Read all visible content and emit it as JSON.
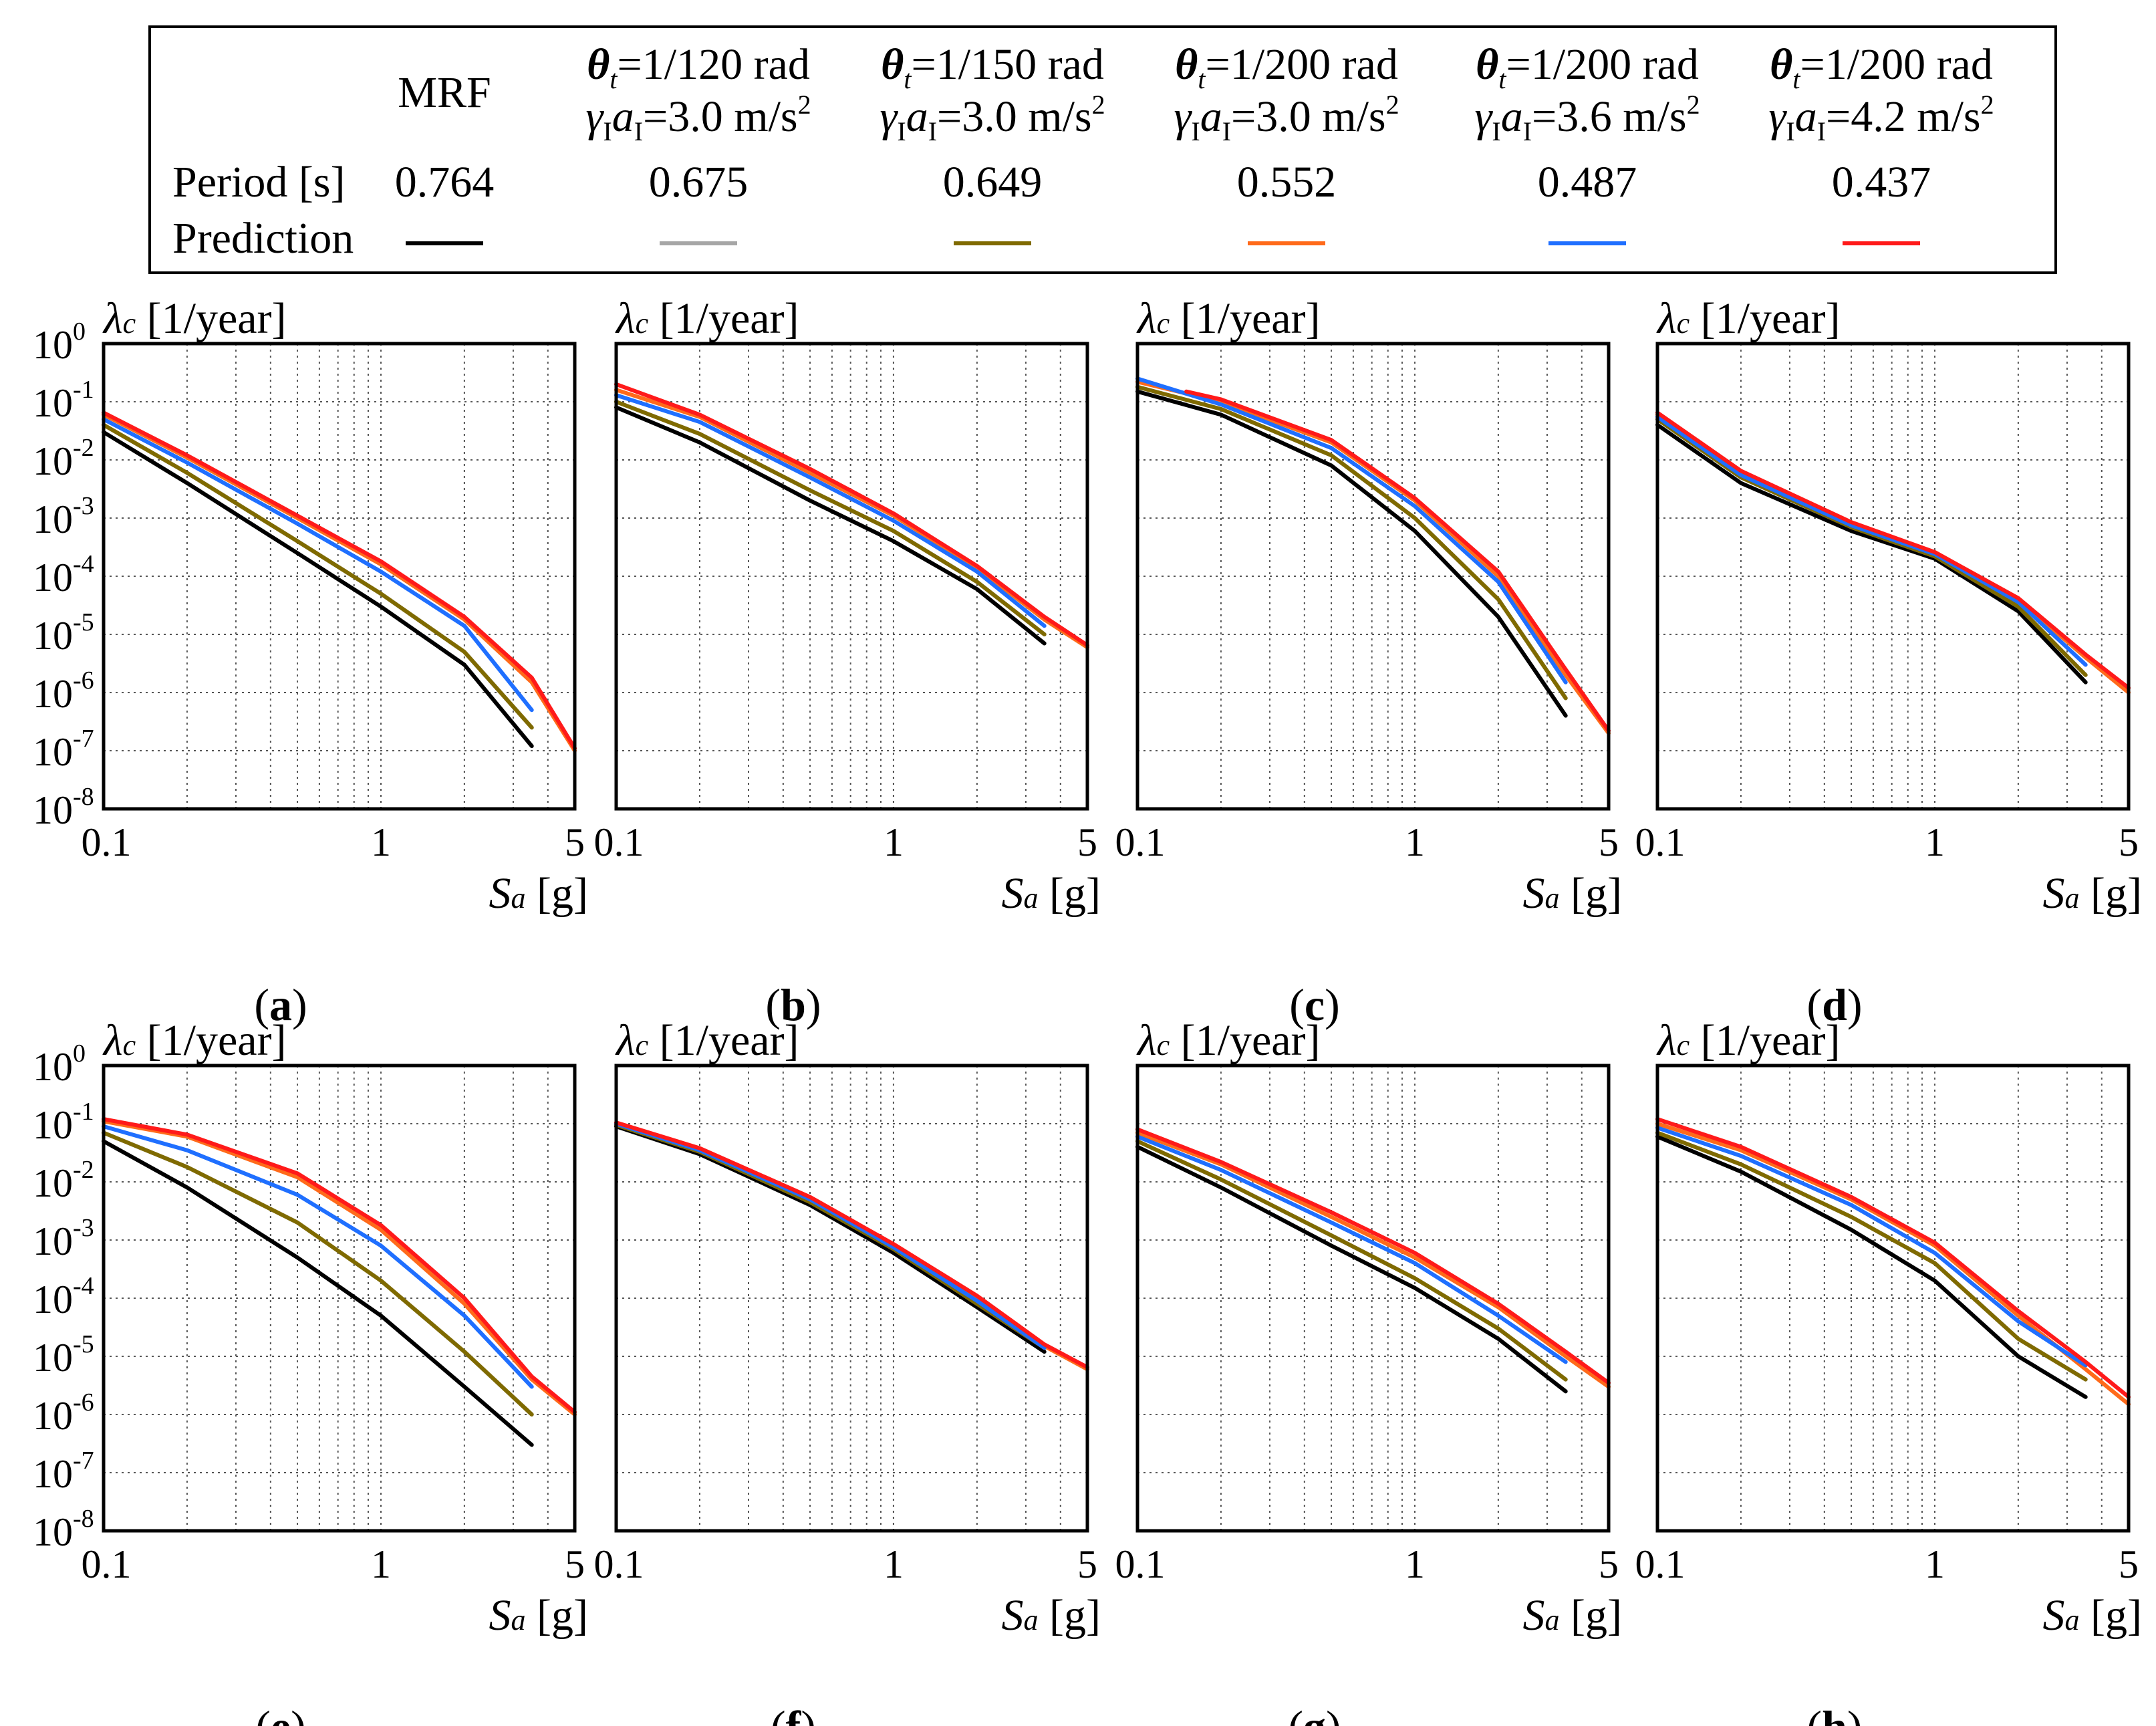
{
  "legend": {
    "row_labels": {
      "period": "Period [s]",
      "prediction": "Prediction"
    },
    "cases": [
      {
        "name": "MRF",
        "theta": "",
        "gamma": "",
        "period": "0.764",
        "color": "#000000"
      },
      {
        "name": "",
        "theta": "1/120 rad",
        "gamma": "3.0 m/s",
        "period": "0.675",
        "color": "#a6a6a6"
      },
      {
        "name": "",
        "theta": "1/150 rad",
        "gamma": "3.0 m/s",
        "period": "0.649",
        "color": "#7f6a00"
      },
      {
        "name": "",
        "theta": "1/200 rad",
        "gamma": "3.0 m/s",
        "period": "0.552",
        "color": "#ff6a1a"
      },
      {
        "name": "",
        "theta": "1/200 rad",
        "gamma": "3.6 m/s",
        "period": "0.487",
        "color": "#1f6fff"
      },
      {
        "name": "",
        "theta": "1/200 rad",
        "gamma": "4.2 m/s",
        "period": "0.437",
        "color": "#ff1a1a"
      }
    ]
  },
  "axes": {
    "ylabel_symbol": "λ",
    "ylabel_sub": "c",
    "ylabel_unit": "[1/year]",
    "xlabel_symbol": "S",
    "xlabel_sub": "a",
    "xlabel_unit": "[g]",
    "xtick_labels": [
      "0.1",
      "1",
      "5"
    ],
    "ytick_base": "10",
    "ytick_exponents": [
      "0",
      "-1",
      "-2",
      "-3",
      "-4",
      "-5",
      "-6",
      "-7",
      "-8"
    ]
  },
  "chart_data": [
    {
      "label": "(a)",
      "type": "line",
      "xscale": "log",
      "yscale": "log",
      "xlim": [
        0.1,
        5
      ],
      "ylim": [
        1e-08,
        1
      ],
      "grid": true,
      "series": [
        {
          "x": [
            0.1,
            0.2,
            0.5,
            1,
            2,
            3.5
          ],
          "y": [
            0.03,
            0.004,
            0.00025,
            3e-05,
            3e-06,
            1.2e-07
          ]
        },
        {
          "x": [
            0.1,
            0.2,
            0.5,
            1,
            2,
            3.5
          ],
          "y": [
            0.04,
            0.006,
            0.0004,
            5e-05,
            5e-06,
            2.5e-07
          ]
        },
        {
          "x": [
            0.1,
            0.2,
            0.5,
            1,
            2,
            3.5
          ],
          "y": [
            0.04,
            0.006,
            0.0004,
            5e-05,
            5e-06,
            2.5e-07
          ]
        },
        {
          "x": [
            0.1,
            0.2,
            0.5,
            1,
            2,
            3.5,
            5
          ],
          "y": [
            0.06,
            0.011,
            0.001,
            0.00016,
            1.8e-05,
            1.5e-06,
            1e-07
          ]
        },
        {
          "x": [
            0.1,
            0.2,
            0.5,
            1,
            2,
            3.5
          ],
          "y": [
            0.05,
            0.009,
            0.0008,
            0.00012,
            1.4e-05,
            5e-07
          ]
        },
        {
          "x": [
            0.1,
            0.2,
            0.5,
            1,
            2,
            3.5,
            5
          ],
          "y": [
            0.065,
            0.012,
            0.0011,
            0.00018,
            2e-05,
            1.8e-06,
            1.1e-07
          ]
        }
      ]
    },
    {
      "label": "(b)",
      "type": "line",
      "xscale": "log",
      "yscale": "log",
      "xlim": [
        0.1,
        5
      ],
      "ylim": [
        1e-08,
        1
      ],
      "grid": true,
      "series": [
        {
          "x": [
            0.1,
            0.2,
            0.5,
            1,
            2,
            3.5
          ],
          "y": [
            0.08,
            0.02,
            0.002,
            0.0004,
            6e-05,
            7e-06
          ]
        },
        {
          "x": [
            0.1,
            0.2,
            0.5,
            1,
            2,
            3.5
          ],
          "y": [
            0.1,
            0.028,
            0.003,
            0.0006,
            8e-05,
            1e-05
          ]
        },
        {
          "x": [
            0.1,
            0.2,
            0.5,
            1,
            2,
            3.5
          ],
          "y": [
            0.1,
            0.028,
            0.003,
            0.0006,
            8e-05,
            1e-05
          ]
        },
        {
          "x": [
            0.1,
            0.2,
            0.5,
            1,
            2,
            3.5,
            5
          ],
          "y": [
            0.16,
            0.055,
            0.006,
            0.0011,
            0.00014,
            1.8e-05,
            6e-06
          ]
        },
        {
          "x": [
            0.1,
            0.2,
            0.5,
            1,
            2,
            3.5
          ],
          "y": [
            0.13,
            0.045,
            0.005,
            0.0009,
            0.00012,
            1.4e-05
          ]
        },
        {
          "x": [
            0.1,
            0.2,
            0.5,
            1,
            2,
            3.5,
            5
          ],
          "y": [
            0.2,
            0.06,
            0.007,
            0.0012,
            0.00015,
            2e-05,
            6.5e-06
          ]
        }
      ]
    },
    {
      "label": "(c)",
      "type": "line",
      "xscale": "log",
      "yscale": "log",
      "xlim": [
        0.1,
        5
      ],
      "ylim": [
        1e-08,
        1
      ],
      "grid": true,
      "series": [
        {
          "x": [
            0.1,
            0.2,
            0.5,
            1,
            2,
            3.5
          ],
          "y": [
            0.15,
            0.06,
            0.008,
            0.0006,
            2e-05,
            4e-07
          ]
        },
        {
          "x": [
            0.1,
            0.2,
            0.5,
            1,
            2,
            3.5
          ],
          "y": [
            0.18,
            0.075,
            0.012,
            0.001,
            4e-05,
            8e-07
          ]
        },
        {
          "x": [
            0.1,
            0.2,
            0.5,
            1,
            2,
            3.5
          ],
          "y": [
            0.18,
            0.075,
            0.012,
            0.001,
            4e-05,
            8e-07
          ]
        },
        {
          "x": [
            0.1,
            0.2,
            0.5,
            1,
            2,
            3.5,
            5
          ],
          "y": [
            0.22,
            0.1,
            0.02,
            0.002,
            0.0001,
            2e-06,
            2e-07
          ]
        },
        {
          "x": [
            0.1,
            0.2,
            0.5,
            1,
            2,
            3.5
          ],
          "y": [
            0.25,
            0.09,
            0.016,
            0.0016,
            8e-05,
            1.5e-06
          ]
        },
        {
          "x": [
            0.15,
            0.2,
            0.5,
            1,
            2,
            3.5,
            5
          ],
          "y": [
            0.15,
            0.11,
            0.022,
            0.0022,
            0.00012,
            2.5e-06,
            2.2e-07
          ]
        }
      ]
    },
    {
      "label": "(d)",
      "type": "line",
      "xscale": "log",
      "yscale": "log",
      "xlim": [
        0.1,
        5
      ],
      "ylim": [
        1e-08,
        1
      ],
      "grid": true,
      "series": [
        {
          "x": [
            0.1,
            0.2,
            0.5,
            1,
            2,
            3.5
          ],
          "y": [
            0.04,
            0.004,
            0.0006,
            0.0002,
            2.5e-05,
            1.5e-06
          ]
        },
        {
          "x": [
            0.1,
            0.2,
            0.5,
            1,
            2,
            3.5
          ],
          "y": [
            0.05,
            0.005,
            0.0007,
            0.00022,
            3e-05,
            2e-06
          ]
        },
        {
          "x": [
            0.1,
            0.2,
            0.5,
            1,
            2,
            3.5
          ],
          "y": [
            0.05,
            0.005,
            0.0007,
            0.00022,
            3e-05,
            2e-06
          ]
        },
        {
          "x": [
            0.1,
            0.2,
            0.5,
            1,
            2,
            3.5,
            5
          ],
          "y": [
            0.06,
            0.006,
            0.0008,
            0.00025,
            4e-05,
            4e-06,
            1e-06
          ]
        },
        {
          "x": [
            0.1,
            0.2,
            0.5,
            1,
            2,
            3.5
          ],
          "y": [
            0.055,
            0.0055,
            0.00075,
            0.00024,
            3.6e-05,
            3e-06
          ]
        },
        {
          "x": [
            0.1,
            0.2,
            0.5,
            1,
            2,
            3.5,
            5
          ],
          "y": [
            0.065,
            0.0065,
            0.00085,
            0.00026,
            4.2e-05,
            4.5e-06,
            1.2e-06
          ]
        }
      ]
    },
    {
      "label": "(e)",
      "type": "line",
      "xscale": "log",
      "yscale": "log",
      "xlim": [
        0.1,
        5
      ],
      "ylim": [
        1e-08,
        1
      ],
      "grid": true,
      "series": [
        {
          "x": [
            0.1,
            0.2,
            0.5,
            1,
            2,
            3.5
          ],
          "y": [
            0.05,
            0.008,
            0.0005,
            5e-05,
            3e-06,
            3e-07
          ]
        },
        {
          "x": [
            0.1,
            0.2,
            0.5,
            1,
            2,
            3.5
          ],
          "y": [
            0.07,
            0.018,
            0.002,
            0.0002,
            1.2e-05,
            1e-06
          ]
        },
        {
          "x": [
            0.1,
            0.2,
            0.5,
            1,
            2,
            3.5
          ],
          "y": [
            0.07,
            0.018,
            0.002,
            0.0002,
            1.2e-05,
            1e-06
          ]
        },
        {
          "x": [
            0.1,
            0.2,
            0.5,
            1,
            2,
            3.5,
            5
          ],
          "y": [
            0.11,
            0.06,
            0.012,
            0.0015,
            8e-05,
            4e-06,
            1e-06
          ]
        },
        {
          "x": [
            0.1,
            0.2,
            0.5,
            1,
            2,
            3.5
          ],
          "y": [
            0.09,
            0.035,
            0.006,
            0.0008,
            5e-05,
            3e-06
          ]
        },
        {
          "x": [
            0.1,
            0.2,
            0.5,
            1,
            2,
            3.5,
            5
          ],
          "y": [
            0.12,
            0.065,
            0.014,
            0.0018,
            0.0001,
            4.5e-06,
            1.1e-06
          ]
        }
      ]
    },
    {
      "label": "(f)",
      "type": "line",
      "xscale": "log",
      "yscale": "log",
      "xlim": [
        0.1,
        5
      ],
      "ylim": [
        1e-08,
        1
      ],
      "grid": true,
      "series": [
        {
          "x": [
            0.1,
            0.2,
            0.5,
            1,
            2,
            3.5
          ],
          "y": [
            0.09,
            0.03,
            0.004,
            0.0006,
            7e-05,
            1.2e-05
          ]
        },
        {
          "x": [
            0.1,
            0.2,
            0.5,
            1,
            2,
            3.5
          ],
          "y": [
            0.095,
            0.033,
            0.0045,
            0.0007,
            8e-05,
            1.4e-05
          ]
        },
        {
          "x": [
            0.1,
            0.2,
            0.5,
            1,
            2,
            3.5
          ],
          "y": [
            0.095,
            0.033,
            0.0045,
            0.0007,
            8e-05,
            1.4e-05
          ]
        },
        {
          "x": [
            0.1,
            0.2,
            0.5,
            1,
            2,
            3.5,
            5
          ],
          "y": [
            0.1,
            0.036,
            0.005,
            0.0008,
            0.0001,
            1.5e-05,
            6e-06
          ]
        },
        {
          "x": [
            0.1,
            0.2,
            0.5,
            1,
            2,
            3.5
          ],
          "y": [
            0.1,
            0.035,
            0.005,
            0.00075,
            9e-05,
            1.4e-05
          ]
        },
        {
          "x": [
            0.1,
            0.2,
            0.5,
            1,
            2,
            3.5,
            5
          ],
          "y": [
            0.105,
            0.038,
            0.0055,
            0.00085,
            0.00011,
            1.6e-05,
            6.5e-06
          ]
        }
      ]
    },
    {
      "label": "(g)",
      "type": "line",
      "xscale": "log",
      "yscale": "log",
      "xlim": [
        0.1,
        5
      ],
      "ylim": [
        1e-08,
        1
      ],
      "grid": true,
      "series": [
        {
          "x": [
            0.1,
            0.2,
            0.5,
            1,
            2,
            3.5
          ],
          "y": [
            0.04,
            0.008,
            0.0008,
            0.00015,
            2e-05,
            2.5e-06
          ]
        },
        {
          "x": [
            0.1,
            0.2,
            0.5,
            1,
            2,
            3.5
          ],
          "y": [
            0.05,
            0.011,
            0.0012,
            0.00022,
            3e-05,
            4e-06
          ]
        },
        {
          "x": [
            0.1,
            0.2,
            0.5,
            1,
            2,
            3.5
          ],
          "y": [
            0.05,
            0.011,
            0.0012,
            0.00022,
            3e-05,
            4e-06
          ]
        },
        {
          "x": [
            0.1,
            0.2,
            0.5,
            1,
            2,
            3.5,
            5
          ],
          "y": [
            0.07,
            0.02,
            0.0025,
            0.0005,
            7e-05,
            1e-05,
            3e-06
          ]
        },
        {
          "x": [
            0.1,
            0.2,
            0.5,
            1,
            2,
            3.5
          ],
          "y": [
            0.06,
            0.016,
            0.002,
            0.0004,
            5e-05,
            8e-06
          ]
        },
        {
          "x": [
            0.1,
            0.2,
            0.5,
            1,
            2,
            3.5,
            5
          ],
          "y": [
            0.08,
            0.022,
            0.003,
            0.0006,
            8e-05,
            1.2e-05,
            3.5e-06
          ]
        }
      ]
    },
    {
      "label": "(h)",
      "type": "line",
      "xscale": "log",
      "yscale": "log",
      "xlim": [
        0.1,
        5
      ],
      "ylim": [
        1e-08,
        1
      ],
      "grid": true,
      "series": [
        {
          "x": [
            0.1,
            0.2,
            0.5,
            1,
            2,
            3.5
          ],
          "y": [
            0.06,
            0.015,
            0.0015,
            0.0002,
            1e-05,
            2e-06
          ]
        },
        {
          "x": [
            0.1,
            0.2,
            0.5,
            1,
            2,
            3.5
          ],
          "y": [
            0.07,
            0.02,
            0.0025,
            0.0004,
            2e-05,
            4e-06
          ]
        },
        {
          "x": [
            0.1,
            0.2,
            0.5,
            1,
            2,
            3.5
          ],
          "y": [
            0.07,
            0.02,
            0.0025,
            0.0004,
            2e-05,
            4e-06
          ]
        },
        {
          "x": [
            0.1,
            0.2,
            0.5,
            1,
            2,
            3.5,
            5
          ],
          "y": [
            0.1,
            0.035,
            0.005,
            0.0008,
            5e-05,
            6e-06,
            1.5e-06
          ]
        },
        {
          "x": [
            0.1,
            0.2,
            0.5,
            1,
            2,
            3.5
          ],
          "y": [
            0.085,
            0.028,
            0.004,
            0.0006,
            4e-05,
            7e-06
          ]
        },
        {
          "x": [
            0.1,
            0.2,
            0.5,
            1,
            2,
            3.5,
            5
          ],
          "y": [
            0.12,
            0.04,
            0.0055,
            0.0009,
            6e-05,
            8e-06,
            2e-06
          ]
        }
      ]
    }
  ]
}
